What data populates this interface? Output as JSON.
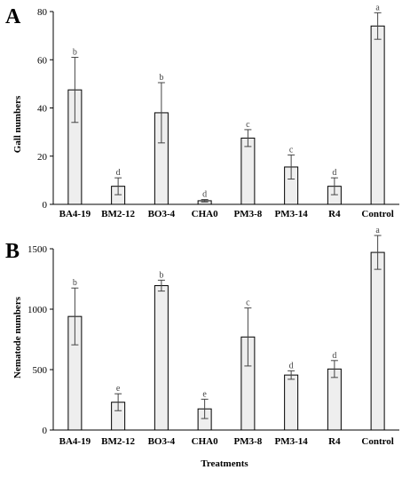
{
  "chart_data": [
    {
      "panel": "A",
      "type": "bar",
      "ylabel": "Gall numbers",
      "xlabel": "",
      "ylim": [
        0,
        80
      ],
      "yticks": [
        0,
        20,
        40,
        60,
        80
      ],
      "categories": [
        "BA4-19",
        "BM2-12",
        "BO3-4",
        "CHA0",
        "PM3-8",
        "PM3-14",
        "R4",
        "Control"
      ],
      "values": [
        47.5,
        7.5,
        38,
        1.5,
        27.5,
        15.5,
        7.5,
        74
      ],
      "errors": [
        13.5,
        3.5,
        12.5,
        0.5,
        3.5,
        5,
        3.5,
        5.5
      ],
      "letters": [
        "b",
        "d",
        "b",
        "d",
        "c",
        "c",
        "d",
        "a"
      ],
      "grid": false
    },
    {
      "panel": "B",
      "type": "bar",
      "ylabel": "Nematode numbers",
      "xlabel": "Treatments",
      "ylim": [
        0,
        1500
      ],
      "yticks": [
        0,
        500,
        1000,
        1500
      ],
      "categories": [
        "BA4-19",
        "BM2-12",
        "BO3-4",
        "CHA0",
        "PM3-8",
        "PM3-14",
        "R4",
        "Control"
      ],
      "values": [
        940,
        230,
        1195,
        175,
        770,
        455,
        505,
        1470
      ],
      "errors": [
        235,
        70,
        45,
        80,
        240,
        35,
        70,
        140
      ],
      "letters": [
        "b",
        "e",
        "b",
        "e",
        "c",
        "d",
        "d",
        "a"
      ],
      "grid": false
    }
  ]
}
